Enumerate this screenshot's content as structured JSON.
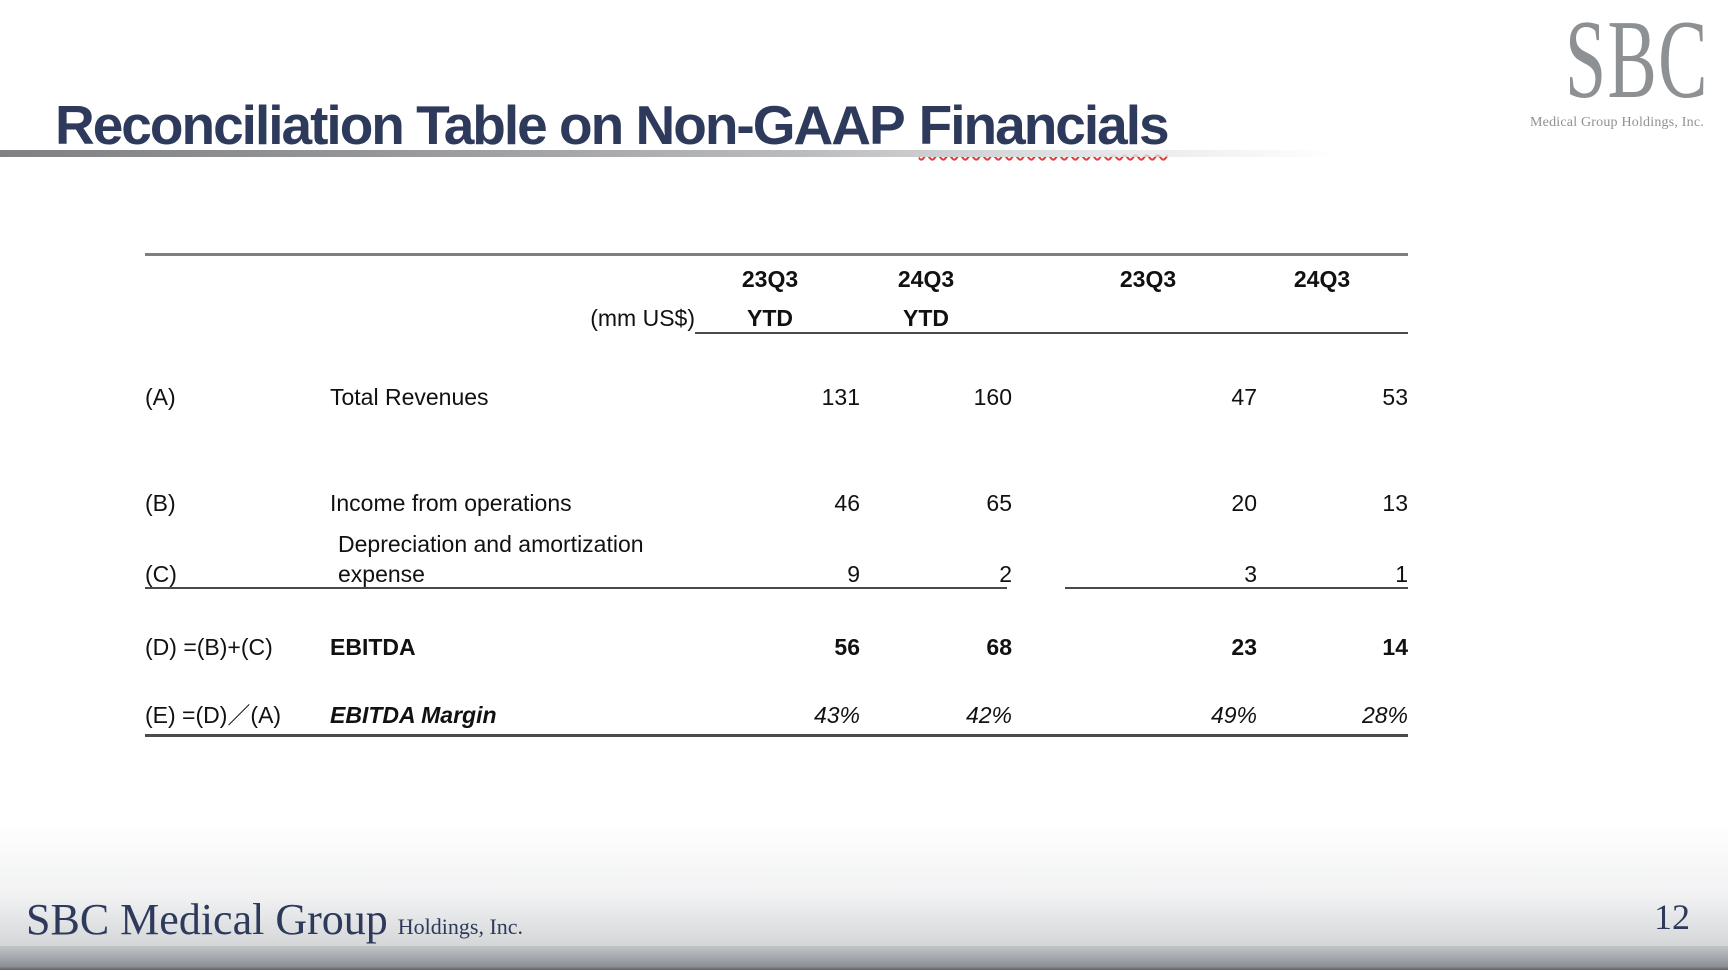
{
  "slide": {
    "title_prefix": "Reconciliation Table on Non-GAAP",
    "title_underlined_word": "Financials",
    "page_number": "12"
  },
  "header_logo": {
    "acronym": "SBC",
    "subtitle": "Medical Group Holdings, Inc."
  },
  "footer": {
    "wordmark": "SBC Medical Group",
    "wordmark_suffix": "Holdings, Inc."
  },
  "table": {
    "unit_label": "(mm US$)",
    "col_headers": [
      "23Q3",
      "24Q3",
      "23Q3",
      "24Q3"
    ],
    "sub_headers": [
      "YTD",
      "YTD"
    ],
    "rows": [
      {
        "ref": "(A)",
        "label": "Total Revenues",
        "values": [
          "131",
          "160",
          "47",
          "53"
        ]
      },
      {
        "ref": "(B)",
        "label": "Income from operations",
        "values": [
          "46",
          "65",
          "20",
          "13"
        ]
      },
      {
        "ref": "(C)",
        "label_line1": "Depreciation and amortization",
        "label_line2": "expense",
        "values": [
          "9",
          "2",
          "3",
          "1"
        ]
      },
      {
        "ref": "(D) =(B)+(C)",
        "label": "EBITDA",
        "values": [
          "56",
          "68",
          "23",
          "14"
        ]
      },
      {
        "ref": "(E) =(D)／(A)",
        "label": "EBITDA Margin",
        "values": [
          "43%",
          "42%",
          "49%",
          "28%"
        ]
      }
    ]
  },
  "colors": {
    "title_navy": "#2e3a5c",
    "logo_gray": "#8e9193",
    "spellcheck_red": "#e23b3b"
  }
}
